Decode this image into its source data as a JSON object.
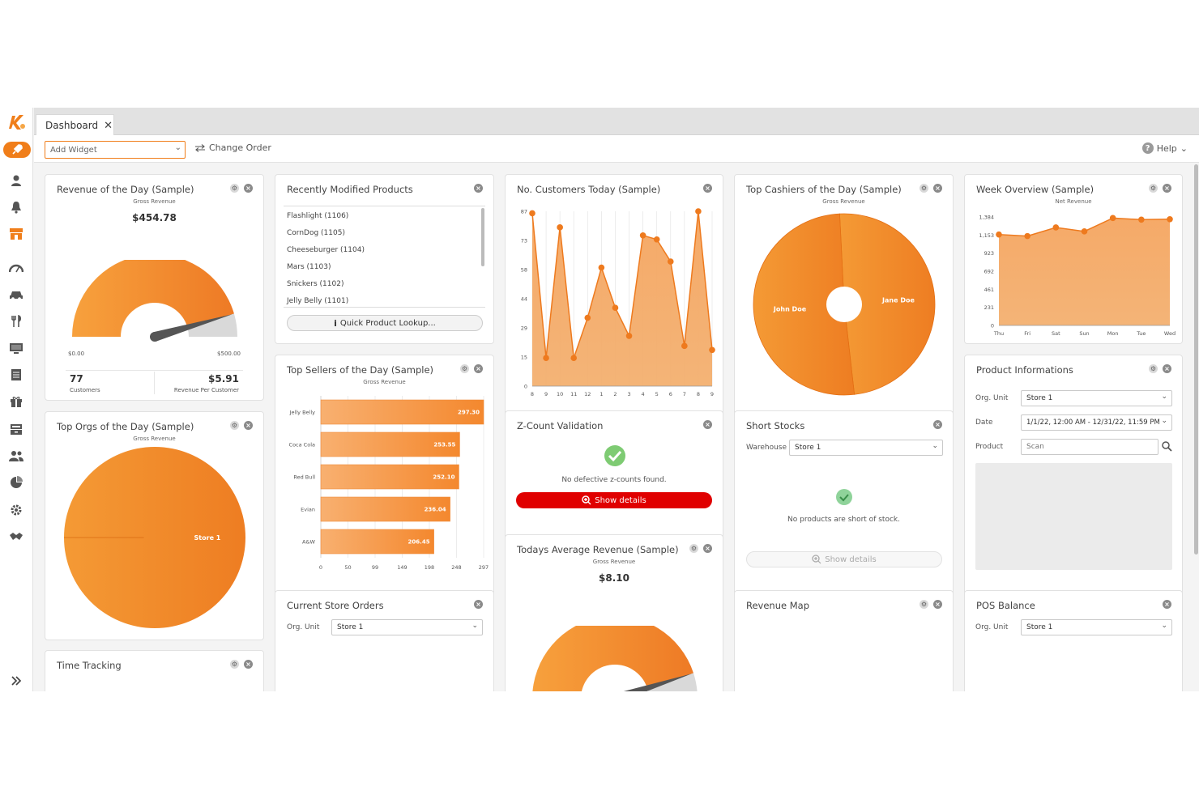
{
  "colors": {
    "accent": "#f07e1a",
    "accent_light": "#f6a55d",
    "danger": "#e00000",
    "success": "#5cb85c"
  },
  "tab": {
    "label": "Dashboard",
    "close": "✕"
  },
  "toolbar": {
    "add_widget_placeholder": "Add Widget",
    "change_order": "Change Order",
    "help": "Help"
  },
  "sidebar": {
    "icons": [
      "user-icon",
      "bell-icon",
      "store-icon",
      "speedometer-icon",
      "car-icon",
      "cutlery-icon",
      "monitor-icon",
      "document-icon",
      "gift-icon",
      "register-icon",
      "users-icon",
      "pie-chart-icon",
      "settings-icon",
      "handshake-icon"
    ]
  },
  "revenue_day": {
    "title": "Revenue of the Day (Sample)",
    "subtitle": "Gross Revenue",
    "value": "$454.78",
    "gauge": {
      "min_label": "$0.00",
      "max_label": "$500.00",
      "fraction": 0.91
    },
    "customers_value": "77",
    "customers_label": "Customers",
    "rpc_value": "$5.91",
    "rpc_label": "Revenue Per Customer"
  },
  "recent_products": {
    "title": "Recently Modified Products",
    "items": [
      "Flashlight (1106)",
      "CornDog (1105)",
      "Cheeseburger (1104)",
      "Mars (1103)",
      "Snickers (1102)",
      "Jelly Belly (1101)"
    ],
    "lookup_button": "Quick Product Lookup..."
  },
  "customers_today": {
    "title": "No. Customers Today (Sample)"
  },
  "top_cashiers": {
    "title": "Top Cashiers of the Day (Sample)",
    "subtitle": "Gross Revenue"
  },
  "week_overview": {
    "title": "Week Overview (Sample)",
    "subtitle": "Net Revenue"
  },
  "top_orgs": {
    "title": "Top Orgs of the Day (Sample)",
    "subtitle": "Gross Revenue"
  },
  "top_sellers": {
    "title": "Top Sellers of the Day (Sample)",
    "subtitle": "Gross Revenue"
  },
  "zcount": {
    "title": "Z-Count Validation",
    "message": "No defective z-counts found.",
    "button": "Show details"
  },
  "short_stocks": {
    "title": "Short Stocks",
    "warehouse_label": "Warehouse",
    "warehouse_value": "Store 1",
    "message": "No products are short of stock.",
    "button": "Show details"
  },
  "product_info": {
    "title": "Product Informations",
    "org_label": "Org. Unit",
    "org_value": "Store 1",
    "date_label": "Date",
    "date_value": "1/1/22, 12:00 AM - 12/31/22, 11:59 PM",
    "product_label": "Product",
    "product_placeholder": "Scan"
  },
  "avg_revenue": {
    "title": "Todays Average Revenue (Sample)",
    "subtitle": "Gross Revenue",
    "value": "$8.10",
    "gauge": {
      "fraction": 0.9
    }
  },
  "time_tracking": {
    "title": "Time Tracking"
  },
  "store_orders": {
    "title": "Current Store Orders",
    "org_label": "Org. Unit",
    "org_value": "Store 1"
  },
  "revenue_map": {
    "title": "Revenue Map"
  },
  "pos_balance": {
    "title": "POS Balance",
    "org_label": "Org. Unit",
    "org_value": "Store 1"
  },
  "chart_data": [
    {
      "type": "area",
      "id": "customers_today",
      "x": [
        "8",
        "9",
        "10",
        "11",
        "12",
        "1",
        "2",
        "3",
        "4",
        "5",
        "6",
        "7",
        "8",
        "9"
      ],
      "y_ticks": [
        "0",
        "15",
        "29",
        "44",
        "58",
        "73",
        "87"
      ],
      "ylim": [
        0,
        87
      ],
      "values": [
        86,
        14,
        79,
        14,
        34,
        59,
        39,
        25,
        75,
        73,
        62,
        20,
        87,
        18
      ]
    },
    {
      "type": "pie",
      "id": "top_cashiers",
      "slices": [
        {
          "label": "Jane Doe",
          "value": 49
        },
        {
          "label": "John Doe",
          "value": 51
        }
      ]
    },
    {
      "type": "area",
      "id": "week_overview",
      "x": [
        "Thu",
        "Fri",
        "Sat",
        "Sun",
        "Mon",
        "Tue",
        "Wed"
      ],
      "y_ticks": [
        "0",
        "231",
        "461",
        "692",
        "923",
        "1,153",
        "1,384"
      ],
      "ylim": [
        0,
        1384
      ],
      "values": [
        1160,
        1140,
        1250,
        1200,
        1370,
        1350,
        1355
      ]
    },
    {
      "type": "pie",
      "id": "top_orgs",
      "slices": [
        {
          "label": "Store 1",
          "value": 100
        }
      ]
    },
    {
      "type": "bar",
      "id": "top_sellers",
      "orientation": "horizontal",
      "categories": [
        "Jelly Belly",
        "Coca Cola",
        "Red Bull",
        "Evian",
        "A&W"
      ],
      "values": [
        297.3,
        253.55,
        252.1,
        236.04,
        206.45
      ],
      "value_labels": [
        "297.30",
        "253.55",
        "252.10",
        "236.04",
        "206.45"
      ],
      "x_ticks": [
        "0",
        "50",
        "99",
        "149",
        "198",
        "248",
        "297"
      ],
      "xlim": [
        0,
        297.3
      ]
    }
  ]
}
